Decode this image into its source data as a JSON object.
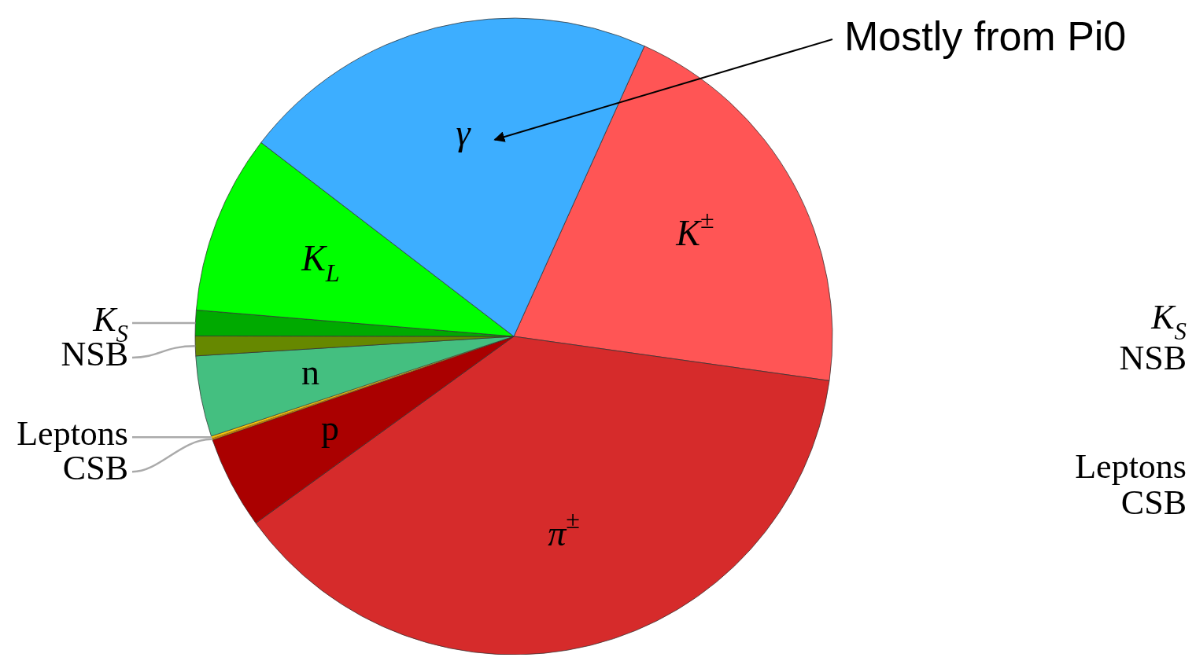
{
  "chart_data": [
    {
      "type": "pie",
      "categories": [
        "K$^{±}$",
        "π$^{±}$",
        "p",
        "CSB",
        "Leptons",
        "n",
        "NSB",
        "K$_{S}$",
        "K$_{L}$",
        "γ"
      ],
      "values": [
        20.5,
        37.8,
        4.7,
        0.1,
        0.1,
        4.1,
        1.0,
        1.3,
        9.1,
        21.3
      ],
      "colors": [
        "#ff5555",
        "#d62b2b",
        "#aa0000",
        "#c08000",
        "#ffcc00",
        "#44bf80",
        "#668800",
        "#00aa00",
        "#00ff00",
        "#3daeff"
      ],
      "annotations": [
        {
          "text": "Mostly from Pi0",
          "x": "γ"
        }
      ]
    },
    {
      "type": "other",
      "annotations": [
        "K$_{S}$",
        "NSB",
        "Leptons",
        "CSB"
      ]
    }
  ]
}
